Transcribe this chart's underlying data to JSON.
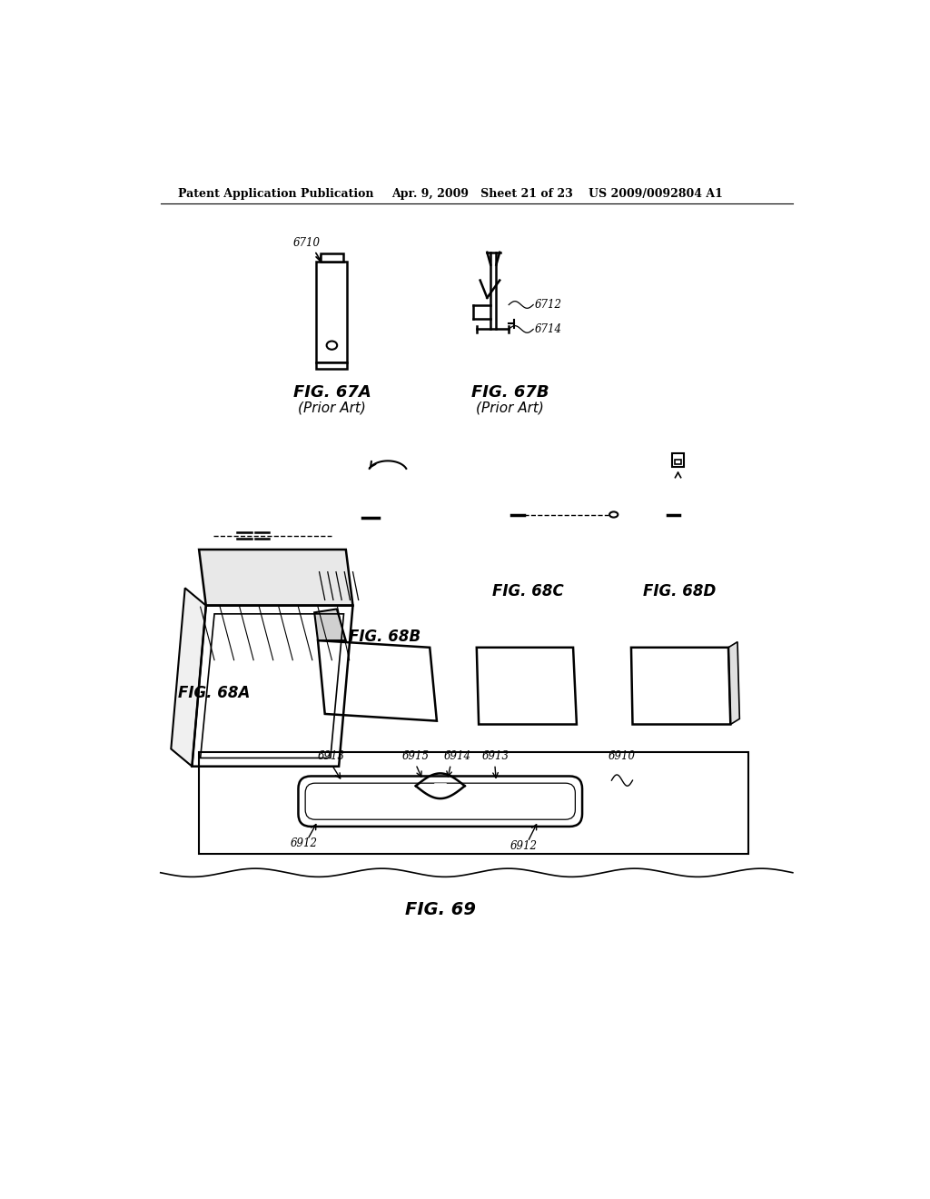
{
  "bg_color": "#ffffff",
  "header_left": "Patent Application Publication",
  "header_mid": "Apr. 9, 2009   Sheet 21 of 23",
  "header_right": "US 2009/0092804 A1",
  "fig67a_label": "FIG. 67A",
  "fig67a_sub": "(Prior Art)",
  "fig67b_label": "FIG. 67B",
  "fig67b_sub": "(Prior Art)",
  "fig68a_label": "FIG. 68A",
  "fig68b_label": "FIG. 68B",
  "fig68c_label": "FIG. 68C",
  "fig68d_label": "FIG. 68D",
  "fig69_label": "FIG. 69",
  "line_color": "#000000",
  "text_color": "#000000"
}
